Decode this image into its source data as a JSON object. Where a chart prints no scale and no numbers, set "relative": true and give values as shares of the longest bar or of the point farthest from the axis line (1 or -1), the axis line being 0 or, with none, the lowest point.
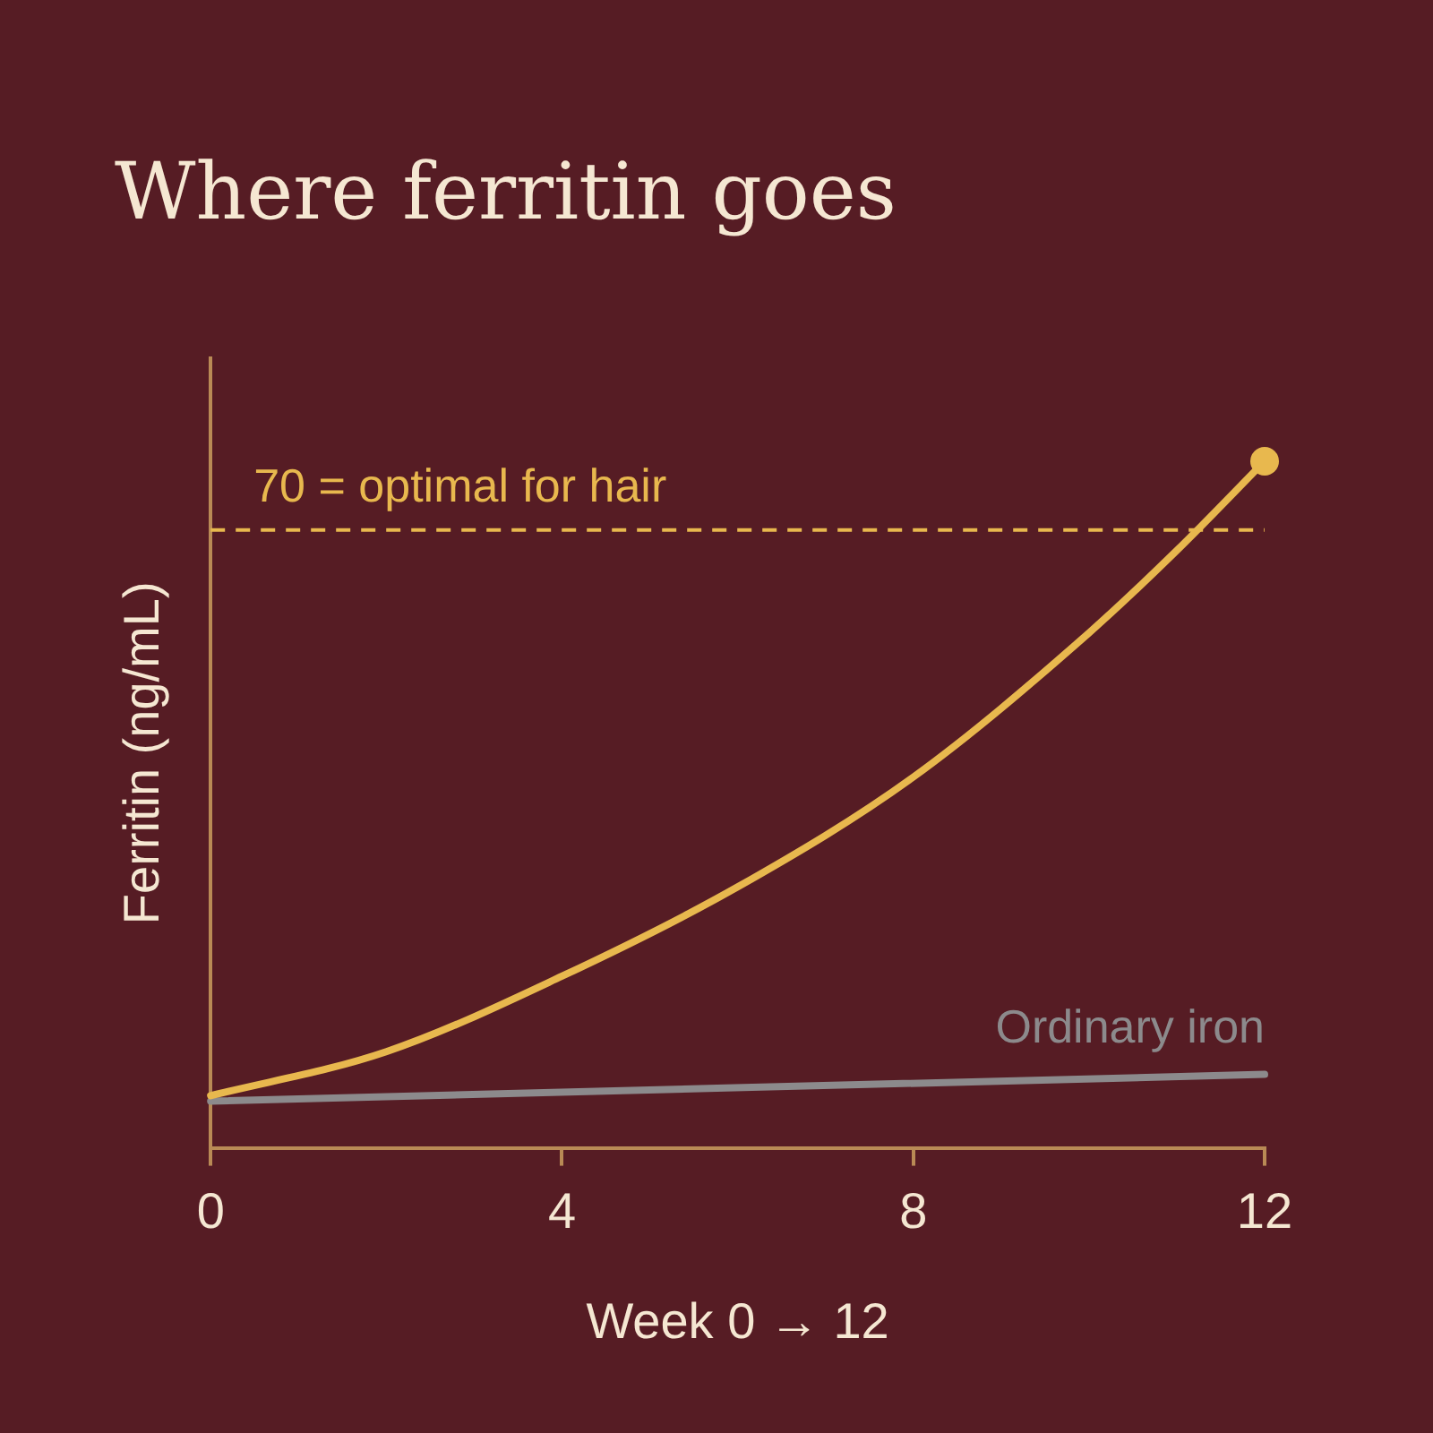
{
  "chart_data": {
    "type": "line",
    "title": "Where ferritin goes",
    "xlabel": "Week 0 → 12",
    "ylabel": "Ferritin (ng/mL)",
    "relative": true,
    "x": [
      0,
      2,
      4,
      6,
      8,
      10,
      11,
      12
    ],
    "xlim": [
      0,
      12
    ],
    "xticks": [
      0,
      4,
      8,
      12
    ],
    "grid": false,
    "legend": false,
    "line_style": "solid",
    "series": [
      {
        "color": "#e8b84e",
        "values": [
          0.076,
          0.14,
          0.25,
          0.38,
          0.54,
          0.75,
          0.87,
          1
        ]
      },
      {
        "name": "Ordinary iron",
        "color": "#8c8a8c",
        "x": [
          0,
          12
        ],
        "values": [
          0.068,
          0.107
        ]
      }
    ],
    "ref_lines": [
      {
        "axis": "y",
        "value": 0.9,
        "label": "70 = optimal for hair",
        "color": "#e8b84e",
        "line_style": "dashed"
      }
    ]
  }
}
